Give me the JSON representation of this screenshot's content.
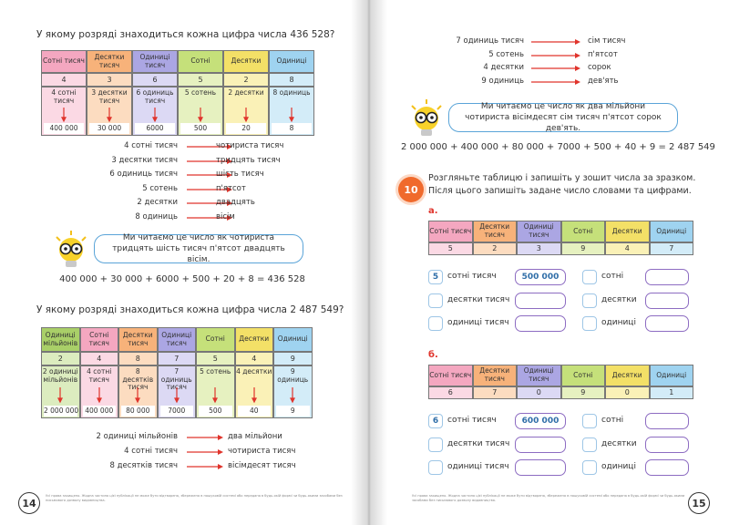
{
  "left_page": {
    "question_1": "У якому розряді знаходиться кожна цифра числа 436 528?",
    "table_1": {
      "headers": [
        "Сотні тисяч",
        "Десятки тисяч",
        "Одиниці тисяч",
        "Сотні",
        "Десятки",
        "Одиниці"
      ],
      "digits": [
        "4",
        "3",
        "6",
        "5",
        "2",
        "8"
      ],
      "words": [
        "4 сотні тисяч",
        "3 десятки тисяч",
        "6 одиниць тисяч",
        "5 сотень",
        "2 десятки",
        "8 одиниць"
      ],
      "values": [
        "400 000",
        "30 000",
        "6000",
        "500",
        "20",
        "8"
      ]
    },
    "pairs_1": [
      {
        "from": "4 сотні тисяч",
        "to": "чотириста тисяч"
      },
      {
        "from": "3 десятки тисяч",
        "to": "тридцять тисяч"
      },
      {
        "from": "6 одиниць тисяч",
        "to": "шість тисяч"
      },
      {
        "from": "5 сотень",
        "to": "п'ятсот"
      },
      {
        "from": "2 десятки",
        "to": "двадцять"
      },
      {
        "from": "8 одиниць",
        "to": "вісім"
      }
    ],
    "bubble_1": "Ми читаємо це число як чотириста тридцять шість тисяч п'ятсот двадцять вісім.",
    "equation_1": "400 000 + 30 000 + 6000 + 500 + 20 + 8 = 436 528",
    "question_2": "У якому розряді знаходиться кожна цифра числа 2 487 549?",
    "table_2": {
      "headers": [
        "Одиниці мільйонів",
        "Сотні тисяч",
        "Десятки тисяч",
        "Одиниці тисяч",
        "Сотні",
        "Десятки",
        "Одиниці"
      ],
      "digits": [
        "2",
        "4",
        "8",
        "7",
        "5",
        "4",
        "9"
      ],
      "words": [
        "2 одиниці мільйонів",
        "4 сотні тисяч",
        "8 десятків тисяч",
        "7 одиниць тисяч",
        "5 сотень",
        "4 десятки",
        "9 одиниць"
      ],
      "values": [
        "2 000 000",
        "400 000",
        "80 000",
        "7000",
        "500",
        "40",
        "9"
      ]
    },
    "pairs_2": [
      {
        "from": "2 одиниці мільйонів",
        "to": "два мільйони"
      },
      {
        "from": "4 сотні тисяч",
        "to": "чотириста тисяч"
      },
      {
        "from": "8 десятків тисяч",
        "to": "вісімдесят тисяч"
      }
    ],
    "footer": "Усі права захищено. Жодна частина цієї публікації не може бути відтворена, збережена в пошуковій системі або передана в будь-якій формі чи будь-якими засобами без письмового дозволу видавництва.",
    "page_number": "14"
  },
  "right_page": {
    "pairs_3": [
      {
        "from": "7 одиниць тисяч",
        "to": "сім тисяч"
      },
      {
        "from": "5 сотень",
        "to": "п'ятсот"
      },
      {
        "from": "4 десятки",
        "to": "сорок"
      },
      {
        "from": "9 одиниць",
        "to": "дев'ять"
      }
    ],
    "bubble_2": "Ми читаємо це число як два мільйони чотириста вісімдесят сім тисяч п'ятсот сорок дев'ять.",
    "equation_2": "2 000 000 + 400 000 + 80 000 + 7000 + 500 + 40 + 9 = 2 487 549",
    "task_number": "10",
    "task_text": "Розгляньте таблицю і запишіть у зошит числа за зразком. Після цього запишіть задане число словами та цифрами.",
    "parts": [
      {
        "label": "а.",
        "headers": [
          "Сотні тисяч",
          "Десятки тисяч",
          "Одиниці тисяч",
          "Сотні",
          "Десятки",
          "Одиниці"
        ],
        "digits": [
          "5",
          "2",
          "3",
          "9",
          "4",
          "7"
        ],
        "example_digit": "5",
        "example_value": "500 000",
        "rows": [
          {
            "left": "сотні тисяч",
            "right": "сотні"
          },
          {
            "left": "десятки тисяч",
            "right": "десятки"
          },
          {
            "left": "одиниці тисяч",
            "right": "одиниці"
          }
        ]
      },
      {
        "label": "б.",
        "headers": [
          "Сотні тисяч",
          "Десятки тисяч",
          "Одиниці тисяч",
          "Сотні",
          "Десятки",
          "Одиниці"
        ],
        "digits": [
          "6",
          "7",
          "0",
          "9",
          "0",
          "1"
        ],
        "example_digit": "6",
        "example_value": "600 000",
        "rows": [
          {
            "left": "сотні тисяч",
            "right": "сотні"
          },
          {
            "left": "десятки тисяч",
            "right": "десятки"
          },
          {
            "left": "одиниці тисяч",
            "right": "одиниці"
          }
        ]
      }
    ],
    "footer": "Усі права захищено. Жодна частина цієї публікації не може бути відтворена, збережена в пошуковій системі або передана в будь-якій формі чи будь-якими засобами без письмового дозволу видавництва.",
    "page_number": "15"
  }
}
